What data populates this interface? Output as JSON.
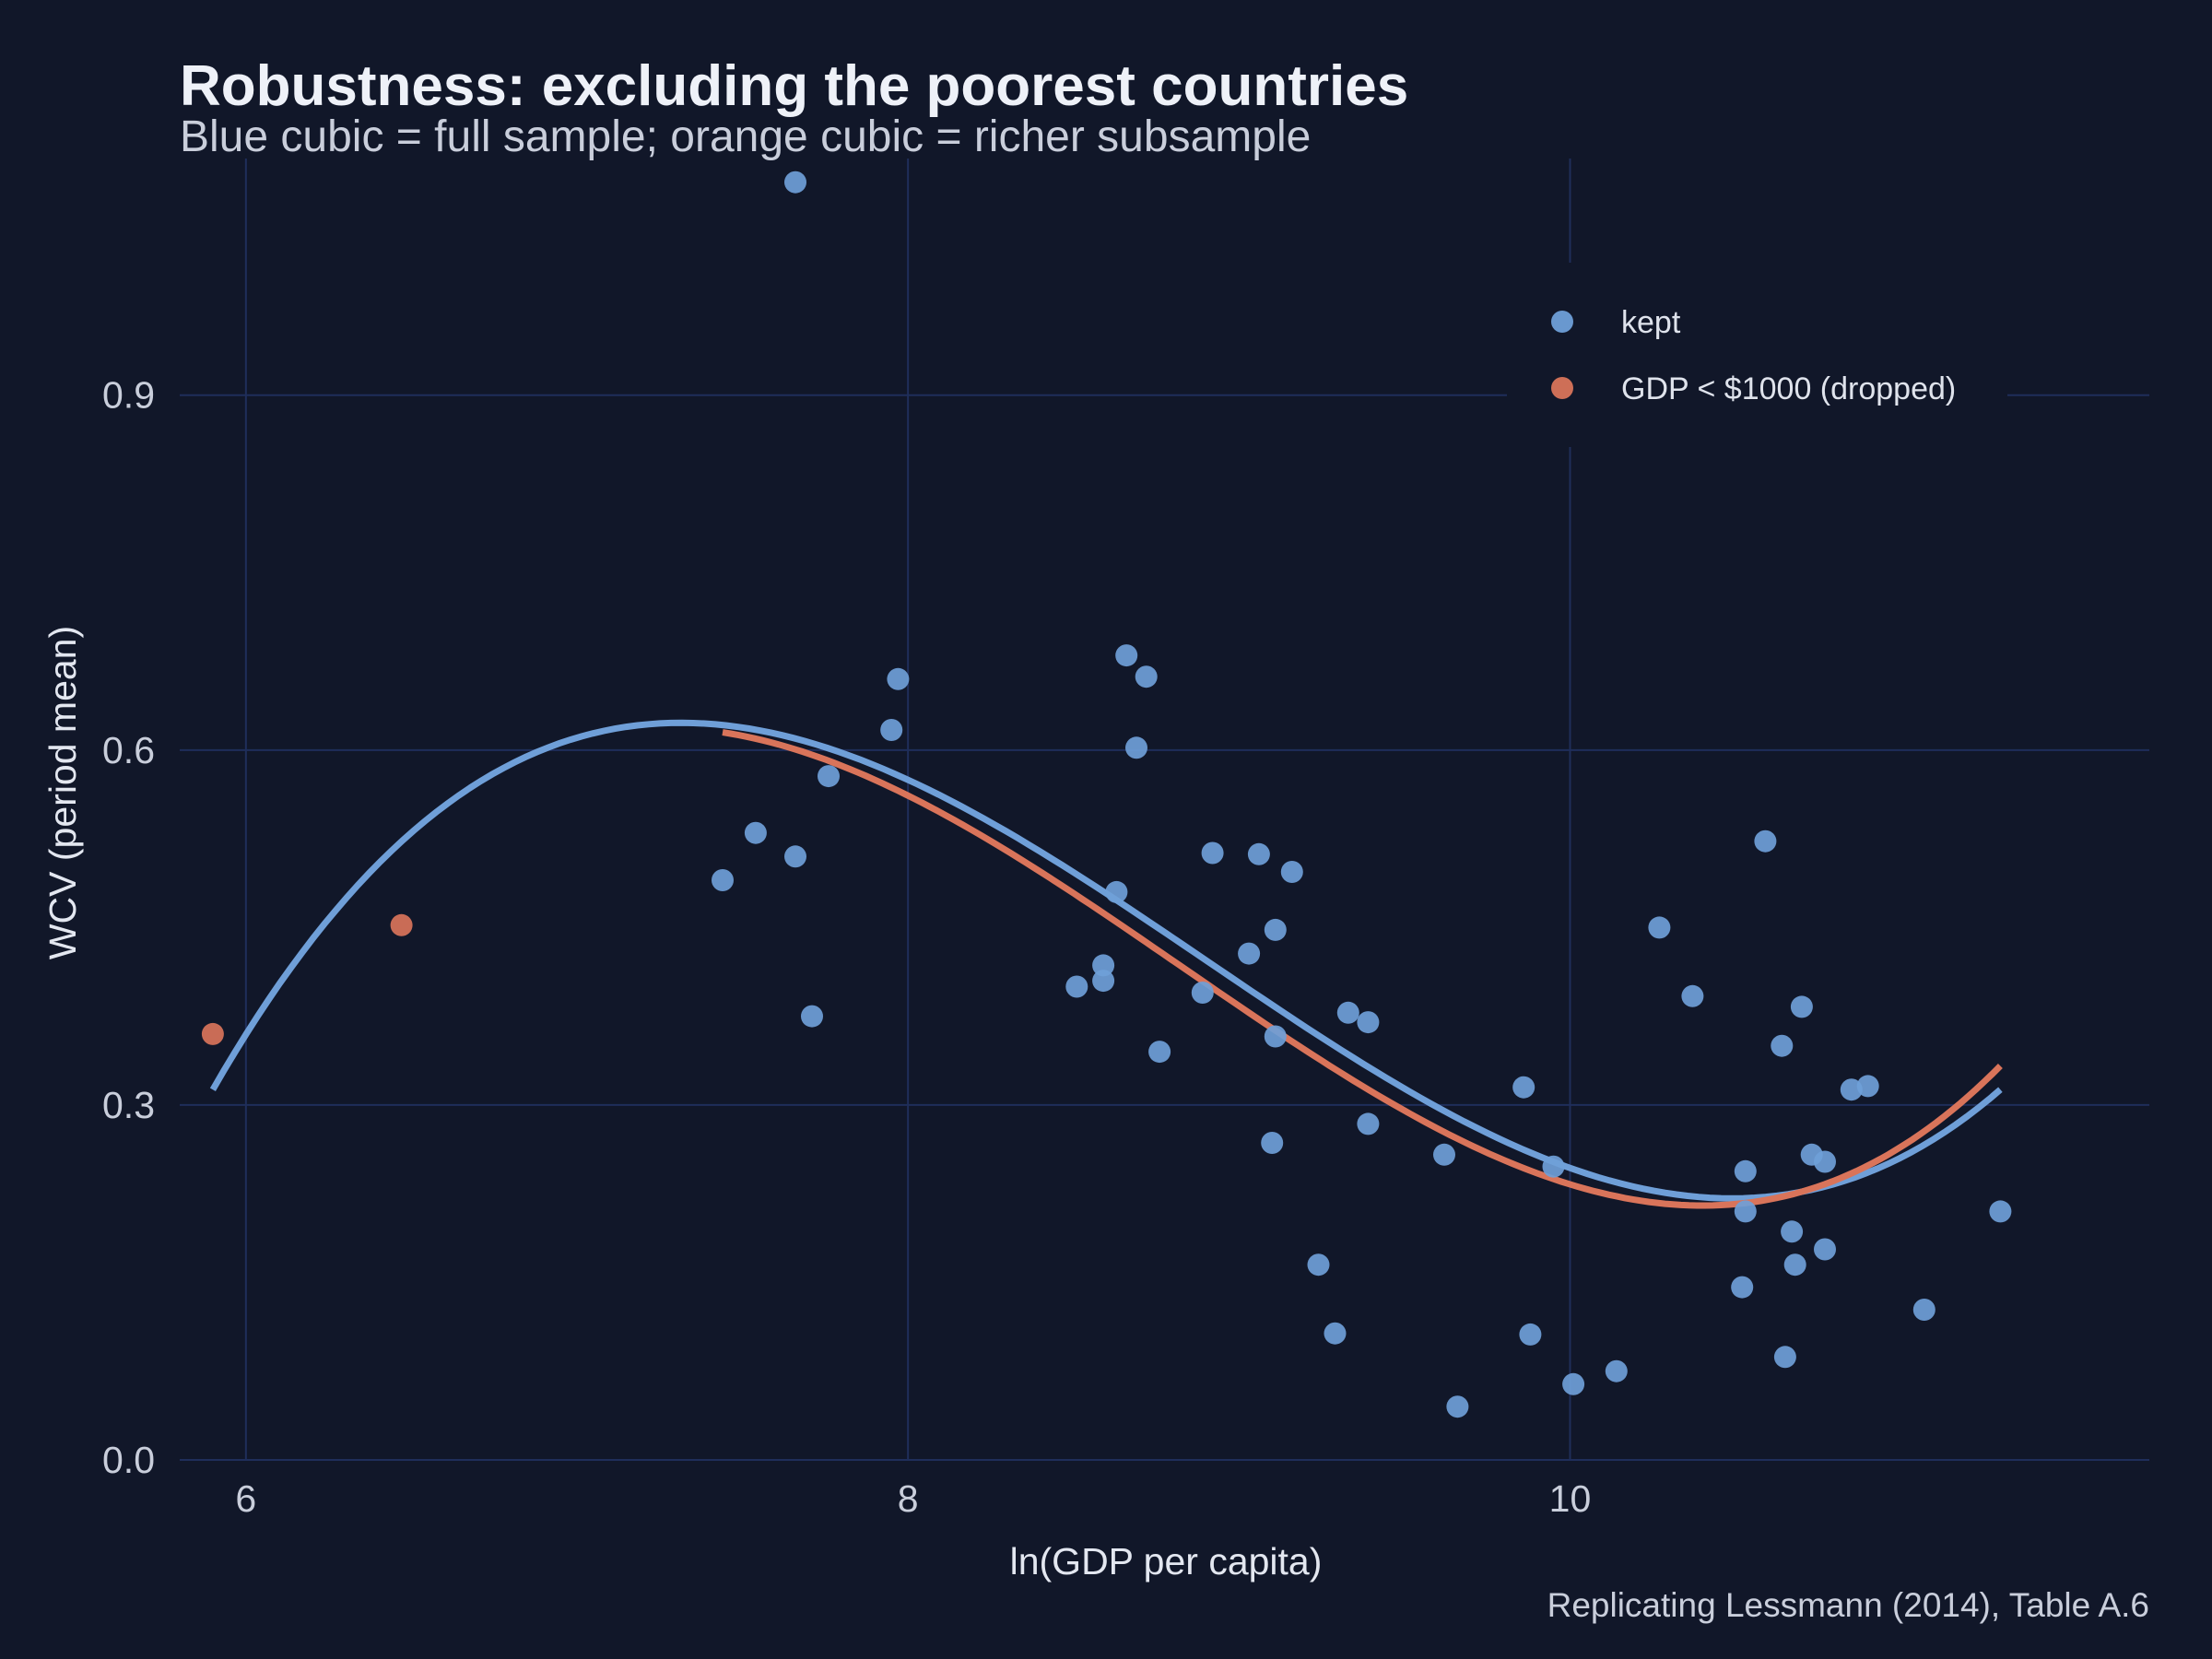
{
  "title": "Robustness: excluding the poorest countries",
  "subtitle": "Blue cubic = full sample; orange cubic = richer subsample",
  "caption": "Replicating Lessmann (2014), Table A.6",
  "colors": {
    "background": "#111729",
    "grid": "#1f2e5a",
    "kept": "#6f9fd8",
    "dropped": "#d9745a",
    "full_fit": "#6f9fd8",
    "subsample_fit": "#d9745a"
  },
  "chart_data": {
    "type": "scatter",
    "title": "Robustness: excluding the poorest countries",
    "subtitle": "Blue cubic = full sample; orange cubic = richer subsample",
    "xlabel": "ln(GDP per capita)",
    "ylabel": "WCV (period mean)",
    "xlim": [
      5.8,
      11.75
    ],
    "ylim": [
      0.0,
      1.1
    ],
    "xticks": [
      6,
      8,
      10
    ],
    "xtick_labels": [
      "6",
      "8",
      "10"
    ],
    "yticks": [
      0.0,
      0.3,
      0.6,
      0.9
    ],
    "ytick_labels": [
      "0.0",
      "0.3",
      "0.6",
      "0.9"
    ],
    "grid": true,
    "legend_position": "top-right",
    "series": [
      {
        "name": "kept",
        "color": "#6f9fd8",
        "points": [
          [
            7.44,
            0.49
          ],
          [
            7.54,
            0.53
          ],
          [
            7.66,
            0.51
          ],
          [
            7.66,
            1.08
          ],
          [
            7.71,
            0.375
          ],
          [
            7.76,
            0.578
          ],
          [
            7.95,
            0.617
          ],
          [
            7.97,
            0.66
          ],
          [
            8.51,
            0.4
          ],
          [
            8.59,
            0.418
          ],
          [
            8.59,
            0.405
          ],
          [
            8.63,
            0.48
          ],
          [
            8.66,
            0.68
          ],
          [
            8.69,
            0.602
          ],
          [
            8.72,
            0.662
          ],
          [
            8.76,
            0.345
          ],
          [
            8.89,
            0.395
          ],
          [
            8.92,
            0.513
          ],
          [
            9.03,
            0.428
          ],
          [
            9.06,
            0.512
          ],
          [
            9.1,
            0.268
          ],
          [
            9.11,
            0.358
          ],
          [
            9.11,
            0.448
          ],
          [
            9.16,
            0.497
          ],
          [
            9.24,
            0.165
          ],
          [
            9.29,
            0.107
          ],
          [
            9.33,
            0.378
          ],
          [
            9.39,
            0.37
          ],
          [
            9.39,
            0.284
          ],
          [
            9.62,
            0.258
          ],
          [
            9.66,
            0.045
          ],
          [
            9.86,
            0.315
          ],
          [
            9.88,
            0.106
          ],
          [
            9.95,
            0.248
          ],
          [
            10.01,
            0.064
          ],
          [
            10.14,
            0.075
          ],
          [
            10.27,
            0.45
          ],
          [
            10.37,
            0.392
          ],
          [
            10.52,
            0.146
          ],
          [
            10.53,
            0.21
          ],
          [
            10.53,
            0.244
          ],
          [
            10.59,
            0.523
          ],
          [
            10.64,
            0.35
          ],
          [
            10.65,
            0.087
          ],
          [
            10.67,
            0.193
          ],
          [
            10.68,
            0.165
          ],
          [
            10.7,
            0.383
          ],
          [
            10.73,
            0.258
          ],
          [
            10.77,
            0.252
          ],
          [
            10.77,
            0.178
          ],
          [
            10.85,
            0.313
          ],
          [
            10.9,
            0.316
          ],
          [
            11.07,
            0.127
          ],
          [
            11.3,
            0.21
          ]
        ]
      },
      {
        "name": "GDP < $1000 (dropped)",
        "color": "#d9745a",
        "points": [
          [
            5.9,
            0.36
          ],
          [
            6.47,
            0.452
          ]
        ]
      }
    ],
    "fits": [
      {
        "color": "#6f9fd8",
        "type": "cubic",
        "x_range": [
          5.9,
          11.3
        ],
        "knots": [
          [
            5.9,
            0.313
          ],
          [
            7.3,
            0.623
          ],
          [
            10.4,
            0.222
          ],
          [
            11.3,
            0.313
          ]
        ]
      },
      {
        "color": "#d9745a",
        "type": "cubic",
        "x_range": [
          7.44,
          11.3
        ],
        "knots": [
          [
            7.44,
            0.615
          ],
          [
            10.4,
            0.215
          ],
          [
            11.3,
            0.333
          ]
        ]
      }
    ]
  }
}
